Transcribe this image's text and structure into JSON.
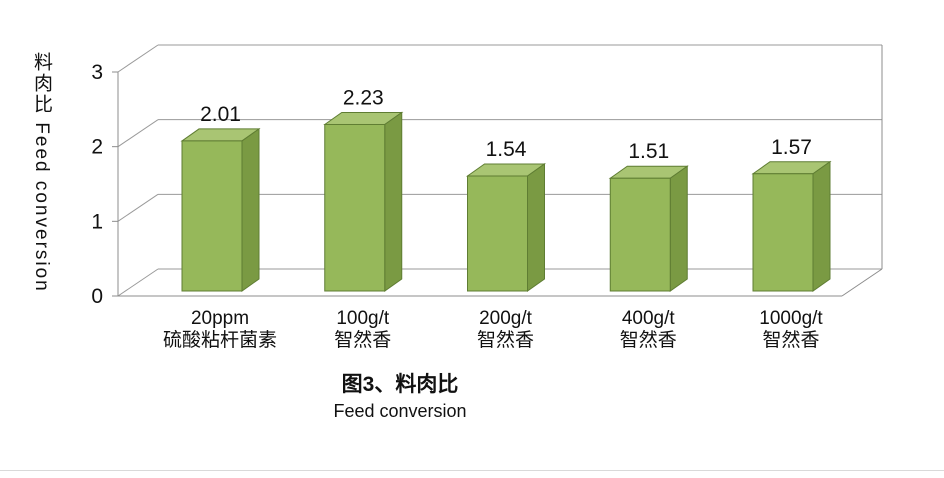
{
  "chart_data": {
    "type": "bar",
    "style": "3d-column",
    "title_cn": "图3、料肉比",
    "title_en": "Feed conversion",
    "y_axis_title": "料肉比  Feed conversion",
    "categories": [
      {
        "line1": "20ppm",
        "line2": "硫酸粘杆菌素"
      },
      {
        "line1": "100g/t",
        "line2": "智然香"
      },
      {
        "line1": "200g/t",
        "line2": "智然香"
      },
      {
        "line1": "400g/t",
        "line2": "智然香"
      },
      {
        "line1": "1000g/t",
        "line2": "智然香"
      }
    ],
    "values": [
      2.01,
      2.23,
      1.54,
      1.51,
      1.57
    ],
    "data_labels": [
      "2.01",
      "2.23",
      "1.54",
      "1.51",
      "1.57"
    ],
    "y_ticks": [
      0,
      1,
      2,
      3
    ],
    "ylim": [
      0,
      3
    ],
    "grid": true,
    "legend": "none",
    "colors": {
      "bar_front": "#96b85a",
      "bar_top": "#a9c573",
      "bar_side": "#7a9a43",
      "bar_outline": "#5f7d33",
      "grid_line": "#9a9a9a",
      "axis_line": "#8c8c8c",
      "text": "#111111"
    }
  }
}
